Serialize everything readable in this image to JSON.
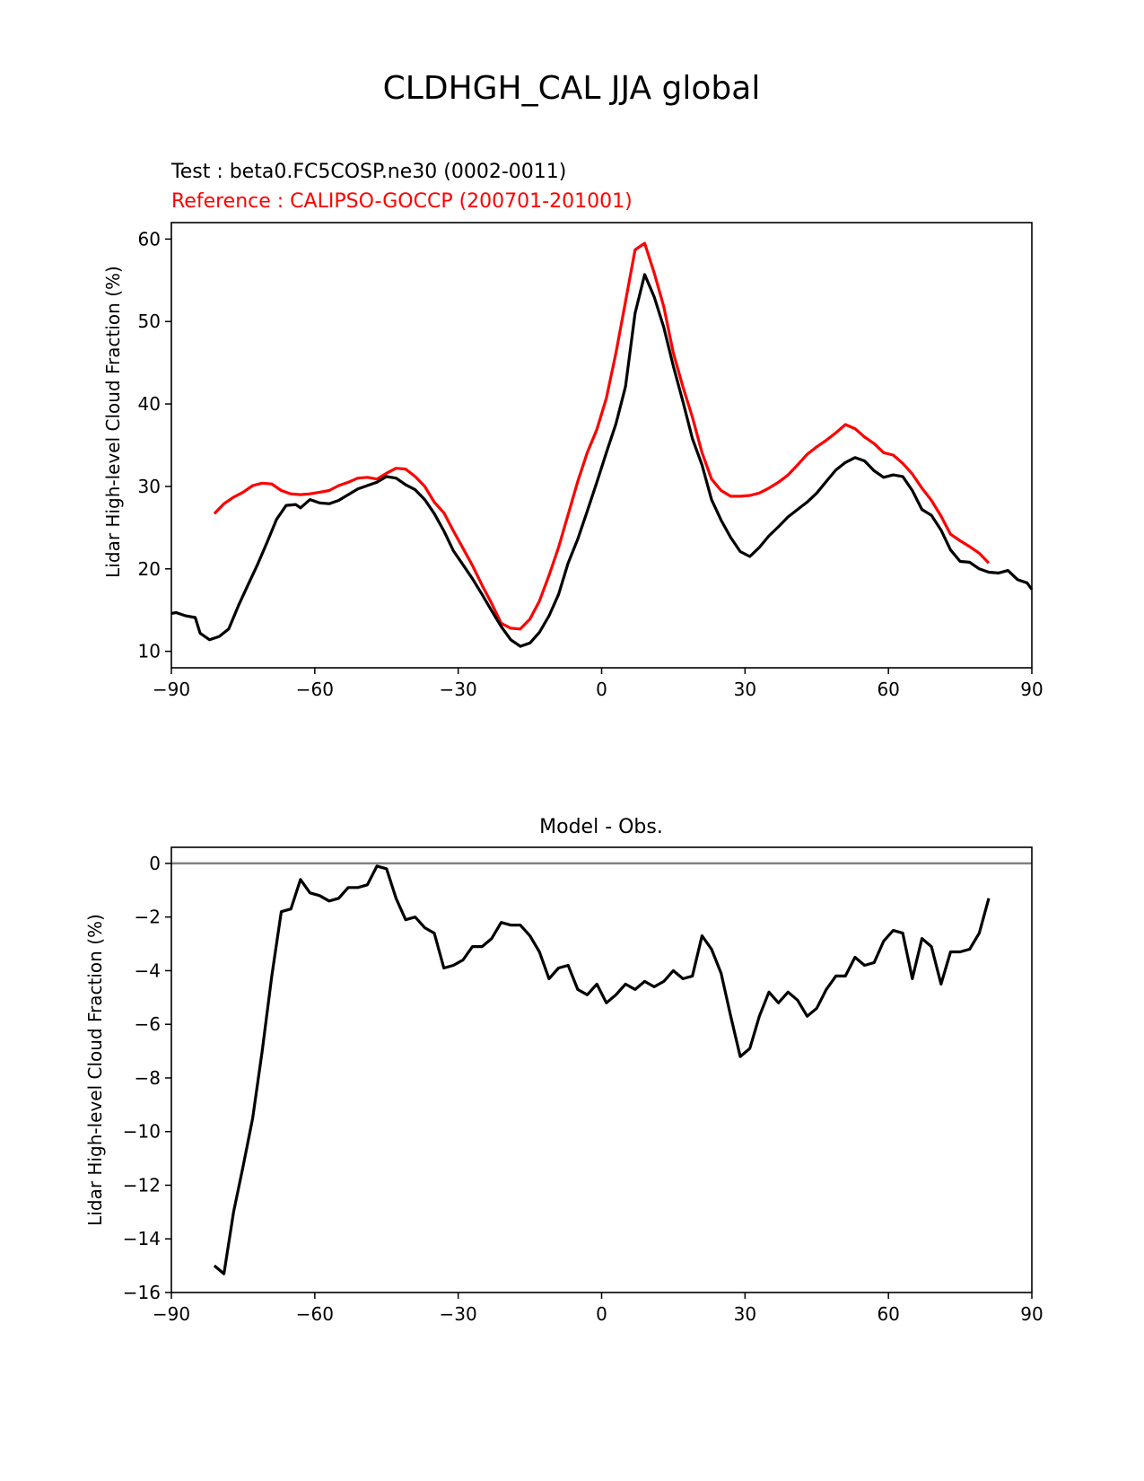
{
  "page": {
    "title": "CLDHGH_CAL JJA global"
  },
  "chart_data": [
    {
      "type": "line",
      "test_label": "Test : beta0.FC5COSP.ne30 (0002-0011)",
      "reference_label": "Reference : CALIPSO-GOCCP (200701-201001)",
      "ylabel": "Lidar High-level Cloud Fraction (%)",
      "xlim": [
        -90,
        90
      ],
      "ylim": [
        8,
        62
      ],
      "xticks": [
        -90,
        -60,
        -30,
        0,
        30,
        60,
        90
      ],
      "xtick_labels": [
        "−90",
        "−60",
        "−30",
        "0",
        "30",
        "60",
        "90"
      ],
      "yticks": [
        10,
        20,
        30,
        40,
        50,
        60
      ],
      "ytick_labels": [
        "10",
        "20",
        "30",
        "40",
        "50",
        "60"
      ],
      "series": [
        {
          "color": "#ff0000",
          "x": [
            -81,
            -79,
            -77,
            -75,
            -73,
            -71,
            -69,
            -67,
            -65,
            -63,
            -61,
            -59,
            -57,
            -55,
            -53,
            -51,
            -49,
            -47,
            -45,
            -43,
            -41,
            -39,
            -37,
            -35,
            -33,
            -31,
            -29,
            -27,
            -25,
            -23,
            -21,
            -19,
            -17,
            -15,
            -13,
            -11,
            -9,
            -7,
            -5,
            -3,
            -1,
            1,
            3,
            5,
            7,
            9,
            11,
            13,
            15,
            17,
            19,
            21,
            23,
            25,
            27,
            29,
            31,
            33,
            35,
            37,
            39,
            41,
            43,
            45,
            47,
            49,
            51,
            53,
            55,
            57,
            59,
            61,
            63,
            65,
            67,
            69,
            71,
            73,
            75,
            77,
            79,
            81
          ],
          "y": [
            26.7,
            27.9,
            28.7,
            29.3,
            30.1,
            30.4,
            30.3,
            29.5,
            29.1,
            29.0,
            29.1,
            29.3,
            29.5,
            30.1,
            30.5,
            31.0,
            31.1,
            30.9,
            31.6,
            32.2,
            32.1,
            31.2,
            30.0,
            28.1,
            26.8,
            24.6,
            22.5,
            20.4,
            18.0,
            15.8,
            13.4,
            12.8,
            12.7,
            13.9,
            16.1,
            19.2,
            22.6,
            26.6,
            30.6,
            34.1,
            36.9,
            40.7,
            46.2,
            52.4,
            58.7,
            59.5,
            55.9,
            51.8,
            46.2,
            42.1,
            38.4,
            34.1,
            30.9,
            29.5,
            28.8,
            28.8,
            28.9,
            29.2,
            29.8,
            30.5,
            31.4,
            32.6,
            33.9,
            34.8,
            35.6,
            36.5,
            37.5,
            37.0,
            36.0,
            35.2,
            34.1,
            33.8,
            32.8,
            31.5,
            29.8,
            28.3,
            26.4,
            24.2,
            23.4,
            22.7,
            21.9,
            20.7
          ]
        },
        {
          "color": "#000000",
          "x": [
            -90,
            -89,
            -87,
            -85,
            -84,
            -82,
            -80,
            -78,
            -76,
            -74,
            -72,
            -70,
            -68,
            -66,
            -64,
            -63,
            -61,
            -59,
            -57,
            -55,
            -53,
            -51,
            -49,
            -47,
            -45,
            -43,
            -41,
            -39,
            -37,
            -35,
            -33,
            -31,
            -29,
            -27,
            -25,
            -23,
            -21,
            -19,
            -17,
            -15,
            -13,
            -11,
            -9,
            -7,
            -5,
            -3,
            -1,
            1,
            3,
            5,
            7,
            9,
            11,
            13,
            15,
            17,
            19,
            21,
            23,
            25,
            27,
            29,
            31,
            33,
            35,
            37,
            39,
            41,
            43,
            45,
            47,
            49,
            51,
            53,
            55,
            57,
            59,
            61,
            63,
            65,
            67,
            69,
            71,
            73,
            75,
            77,
            79,
            81,
            83,
            85,
            87,
            89,
            90
          ],
          "y": [
            14.6,
            14.7,
            14.3,
            14.1,
            12.2,
            11.4,
            11.8,
            12.7,
            15.5,
            18.0,
            20.5,
            23.2,
            26.0,
            27.7,
            27.8,
            27.4,
            28.4,
            28.0,
            27.9,
            28.3,
            29.0,
            29.7,
            30.1,
            30.5,
            31.2,
            31.0,
            30.2,
            29.6,
            28.4,
            26.7,
            24.6,
            22.2,
            20.5,
            18.8,
            16.9,
            14.9,
            13.0,
            11.4,
            10.6,
            11.0,
            12.3,
            14.3,
            16.9,
            20.7,
            23.6,
            27.0,
            30.5,
            34.1,
            37.6,
            42.1,
            51.0,
            55.7,
            53.0,
            49.3,
            44.6,
            40.3,
            35.8,
            32.6,
            28.4,
            25.9,
            23.8,
            22.1,
            21.5,
            22.6,
            24.0,
            25.1,
            26.3,
            27.2,
            28.1,
            29.2,
            30.6,
            32.0,
            32.9,
            33.5,
            33.1,
            31.9,
            31.1,
            31.4,
            31.2,
            29.5,
            27.2,
            26.5,
            24.7,
            22.3,
            20.9,
            20.8,
            20.0,
            19.6,
            19.5,
            19.8,
            18.7,
            18.3,
            17.5
          ]
        }
      ]
    },
    {
      "type": "line",
      "title": "Model - Obs.",
      "ylabel": "Lidar High-level Cloud Fraction (%)",
      "xlim": [
        -90,
        90
      ],
      "ylim": [
        -16,
        0.6
      ],
      "xticks": [
        -90,
        -60,
        -30,
        0,
        30,
        60,
        90
      ],
      "xtick_labels": [
        "−90",
        "−60",
        "−30",
        "0",
        "30",
        "60",
        "90"
      ],
      "yticks": [
        0,
        -2,
        -4,
        -6,
        -8,
        -10,
        -12,
        -14,
        -16
      ],
      "ytick_labels": [
        "0",
        "−2",
        "−4",
        "−6",
        "−8",
        "−10",
        "−12",
        "−14",
        "−16"
      ],
      "zero_line_color": "#808080",
      "series": [
        {
          "color": "#000000",
          "x": [
            -81,
            -79,
            -77,
            -75,
            -73,
            -71,
            -69,
            -67,
            -65,
            -63,
            -61,
            -59,
            -57,
            -55,
            -53,
            -51,
            -49,
            -47,
            -45,
            -43,
            -41,
            -39,
            -37,
            -35,
            -33,
            -31,
            -29,
            -27,
            -25,
            -23,
            -21,
            -19,
            -17,
            -15,
            -13,
            -11,
            -9,
            -7,
            -5,
            -3,
            -1,
            1,
            3,
            5,
            7,
            9,
            11,
            13,
            15,
            17,
            19,
            21,
            23,
            25,
            27,
            29,
            31,
            33,
            35,
            37,
            39,
            41,
            43,
            45,
            47,
            49,
            51,
            53,
            55,
            57,
            59,
            61,
            63,
            65,
            67,
            69,
            71,
            73,
            75,
            77,
            79,
            81
          ],
          "y": [
            -15.0,
            -15.3,
            -13.0,
            -11.3,
            -9.5,
            -7.0,
            -4.2,
            -1.8,
            -1.7,
            -0.6,
            -1.1,
            -1.2,
            -1.4,
            -1.3,
            -0.9,
            -0.9,
            -0.8,
            -0.1,
            -0.2,
            -1.3,
            -2.1,
            -2.0,
            -2.4,
            -2.6,
            -3.9,
            -3.8,
            -3.6,
            -3.1,
            -3.1,
            -2.8,
            -2.2,
            -2.3,
            -2.3,
            -2.7,
            -3.3,
            -4.3,
            -3.9,
            -3.8,
            -4.7,
            -4.9,
            -4.5,
            -5.2,
            -4.9,
            -4.5,
            -4.7,
            -4.4,
            -4.6,
            -4.4,
            -4.0,
            -4.3,
            -4.2,
            -2.7,
            -3.2,
            -4.1,
            -5.7,
            -7.2,
            -6.9,
            -5.7,
            -4.8,
            -5.2,
            -4.8,
            -5.1,
            -5.7,
            -5.4,
            -4.7,
            -4.2,
            -4.2,
            -3.5,
            -3.8,
            -3.7,
            -2.9,
            -2.5,
            -2.6,
            -4.3,
            -2.8,
            -3.1,
            -4.5,
            -3.3,
            -3.3,
            -3.2,
            -2.6,
            -1.3
          ]
        }
      ]
    }
  ]
}
